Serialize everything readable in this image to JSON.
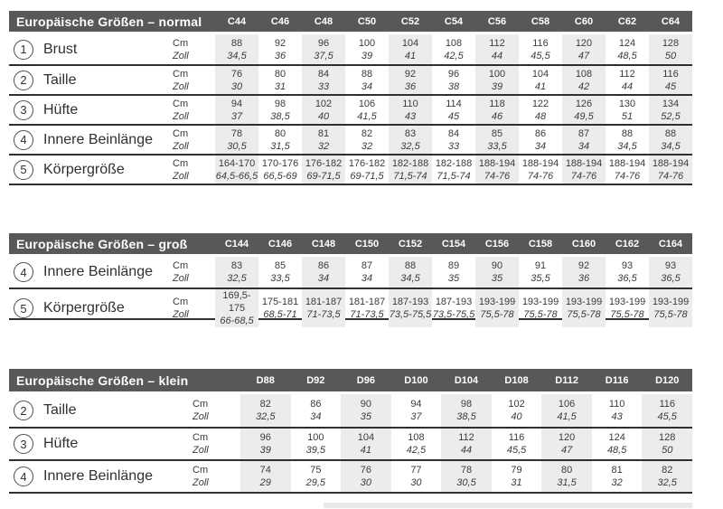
{
  "colors": {
    "header_bar": "#58585a",
    "header_text": "#ffffff",
    "shaded_column": "#ececec",
    "body_text": "#3b3b3d",
    "rule_line": "#2f2f31",
    "circle_border": "#4c4c4e",
    "cropped_strip": "#e9e9e9"
  },
  "units": {
    "cm": "Cm",
    "zoll": "Zoll"
  },
  "tables": [
    {
      "title": "Europäische Größen – normal",
      "columns": [
        "C44",
        "C46",
        "C48",
        "C50",
        "C52",
        "C54",
        "C56",
        "C58",
        "C60",
        "C62",
        "C64"
      ],
      "rows": [
        {
          "num": "1",
          "label": "Brust",
          "cm": [
            "88",
            "92",
            "96",
            "100",
            "104",
            "108",
            "112",
            "116",
            "120",
            "124",
            "128"
          ],
          "zoll": [
            "34,5",
            "36",
            "37,5",
            "39",
            "41",
            "42,5",
            "44",
            "45,5",
            "47",
            "48,5",
            "50"
          ]
        },
        {
          "num": "2",
          "label": "Taille",
          "cm": [
            "76",
            "80",
            "84",
            "88",
            "92",
            "96",
            "100",
            "104",
            "108",
            "112",
            "116"
          ],
          "zoll": [
            "30",
            "31",
            "33",
            "34",
            "36",
            "38",
            "39",
            "41",
            "42",
            "44",
            "45"
          ]
        },
        {
          "num": "3",
          "label": "Hüfte",
          "cm": [
            "94",
            "98",
            "102",
            "106",
            "110",
            "114",
            "118",
            "122",
            "126",
            "130",
            "134"
          ],
          "zoll": [
            "37",
            "38,5",
            "40",
            "41,5",
            "43",
            "45",
            "46",
            "48",
            "49,5",
            "51",
            "52,5"
          ]
        },
        {
          "num": "4",
          "label": "Innere Beinlänge",
          "cm": [
            "78",
            "80",
            "81",
            "82",
            "83",
            "84",
            "85",
            "86",
            "87",
            "88",
            "88"
          ],
          "zoll": [
            "30,5",
            "31,5",
            "32",
            "32",
            "32,5",
            "33",
            "33,5",
            "34",
            "34",
            "34,5",
            "34,5"
          ]
        },
        {
          "num": "5",
          "label": "Körpergröße",
          "cm": [
            "164-170",
            "170-176",
            "176-182",
            "176-182",
            "182-188",
            "182-188",
            "188-194",
            "188-194",
            "188-194",
            "188-194",
            "188-194"
          ],
          "zoll": [
            "64,5-66,5",
            "66,5-69",
            "69-71,5",
            "69-71,5",
            "71,5-74",
            "71,5-74",
            "74-76",
            "74-76",
            "74-76",
            "74-76",
            "74-76"
          ]
        }
      ]
    },
    {
      "title": "Europäische Größen – groß",
      "columns": [
        "C144",
        "C146",
        "C148",
        "C150",
        "C152",
        "C154",
        "C156",
        "C158",
        "C160",
        "C162",
        "C164"
      ],
      "rows": [
        {
          "num": "4",
          "label": "Innere Beinlänge",
          "cm": [
            "83",
            "85",
            "86",
            "87",
            "88",
            "89",
            "90",
            "91",
            "92",
            "93",
            "93"
          ],
          "zoll": [
            "32,5",
            "33,5",
            "34",
            "34",
            "34,5",
            "35",
            "35",
            "35,5",
            "36",
            "36,5",
            "36,5"
          ]
        },
        {
          "num": "5",
          "label": "Körpergröße",
          "cm": [
            "169,5-175",
            "175-181",
            "181-187",
            "181-187",
            "187-193",
            "187-193",
            "193-199",
            "193-199",
            "193-199",
            "193-199",
            "193-199"
          ],
          "zoll": [
            "66-68,5",
            "68,5-71",
            "71-73,5",
            "71-73,5",
            "73,5-75,5",
            "73,5-75,5",
            "75,5-78",
            "75,5-78",
            "75,5-78",
            "75,5-78",
            "75,5-78"
          ]
        }
      ]
    },
    {
      "title": "Europäische Größen – klein",
      "columns": [
        "D88",
        "D92",
        "D96",
        "D100",
        "D104",
        "D108",
        "D112",
        "D116",
        "D120"
      ],
      "rows": [
        {
          "num": "2",
          "label": "Taille",
          "cm": [
            "82",
            "86",
            "90",
            "94",
            "98",
            "102",
            "106",
            "110",
            "116"
          ],
          "zoll": [
            "32,5",
            "34",
            "35",
            "37",
            "38,5",
            "40",
            "41,5",
            "43",
            "45,5"
          ]
        },
        {
          "num": "3",
          "label": "Hüfte",
          "cm": [
            "96",
            "100",
            "104",
            "108",
            "112",
            "116",
            "120",
            "124",
            "128"
          ],
          "zoll": [
            "39",
            "39,5",
            "41",
            "42,5",
            "44",
            "45,5",
            "47",
            "48,5",
            "50"
          ]
        },
        {
          "num": "4",
          "label": "Innere Beinlänge",
          "cm": [
            "74",
            "75",
            "76",
            "77",
            "78",
            "79",
            "80",
            "81",
            "82"
          ],
          "zoll": [
            "29",
            "29,5",
            "30",
            "30",
            "30,5",
            "31",
            "31,5",
            "32",
            "32,5"
          ]
        }
      ]
    }
  ]
}
